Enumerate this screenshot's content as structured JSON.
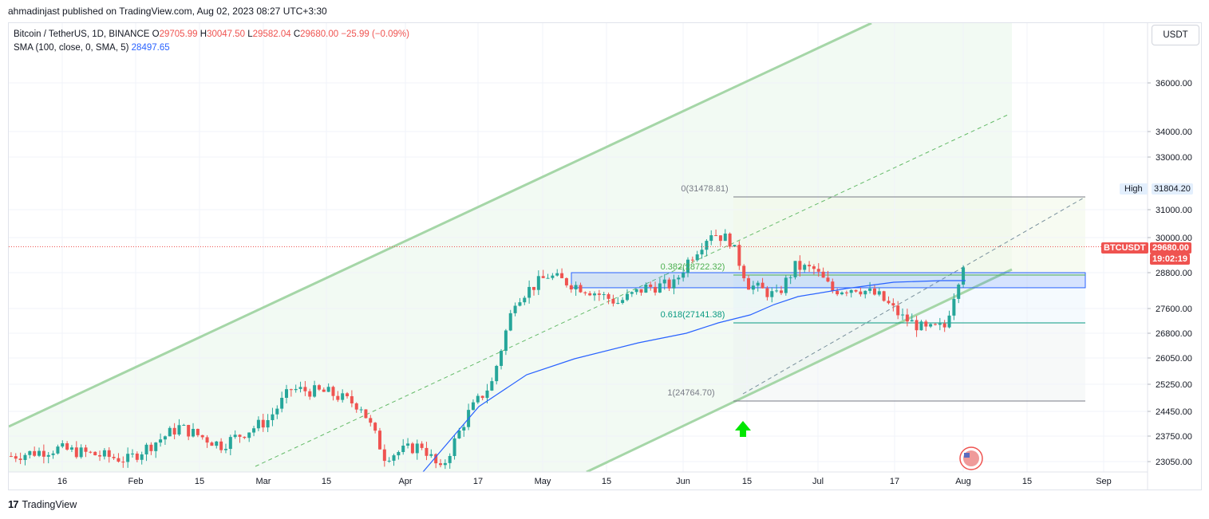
{
  "header": {
    "published": "ahmadinjast published on TradingView.com, Aug 02, 2023 08:27 UTC+3:30"
  },
  "legend": {
    "symbol": "Bitcoin / TetherUS, 1D, BINANCE",
    "open_label": "O",
    "open": "29705.99",
    "high_label": "H",
    "high": "30047.50",
    "low_label": "L",
    "low": "29582.04",
    "close_label": "C",
    "close": "29680.00",
    "change": "−25.99 (−0.09%)",
    "sma_label": "SMA (100, close, 0, SMA, 5)",
    "sma_value": "28497.65"
  },
  "currency": "USDT",
  "footer": {
    "logo": "17",
    "brand": "TradingView"
  },
  "price_tags": {
    "high_label": "High",
    "high_value": "31804.20",
    "symbol_tag": "BTCUSDT",
    "last_price": "29680.00",
    "countdown": "19:02:19"
  },
  "fib_labels": {
    "level_0": "0(31478.81)",
    "level_382": "0.382(28722.32)",
    "level_618": "0.618(27141.38)",
    "level_1": "1(24764.70)"
  },
  "colors": {
    "up": "#26a69a",
    "down": "#ef5350",
    "sma": "#2962ff",
    "channel": "#a5d6a7",
    "zone": "#2962ff",
    "arrow": "#00e600"
  },
  "chart_data": {
    "type": "candlestick",
    "symbol": "BTCUSDT",
    "timeframe": "1D",
    "y_axis": {
      "scale": "log",
      "ticks": [
        36000,
        34000,
        33000,
        31000,
        30000,
        28800,
        27600,
        26800,
        26050,
        25250,
        24450,
        23750,
        23050
      ],
      "tick_labels": [
        "36000.00",
        "34000.00",
        "33000.00",
        "31000.00",
        "30000.00",
        "28800.00",
        "27600.00",
        "26800.00",
        "26050.00",
        "25250.00",
        "24450.00",
        "23750.00",
        "23050.00"
      ]
    },
    "x_axis": {
      "tick_labels": [
        "16",
        "Feb",
        "15",
        "Mar",
        "15",
        "Apr",
        "17",
        "May",
        "15",
        "Jun",
        "15",
        "Jul",
        "17",
        "Aug",
        "15",
        "Sep"
      ]
    },
    "last_price": 29680.0,
    "high_marker": 31804.2,
    "sma": {
      "name": "SMA (100, close, 0, SMA, 5)",
      "last": 28497.65
    },
    "fibonacci": [
      {
        "level": 0,
        "price": 31478.81
      },
      {
        "level": 0.382,
        "price": 28722.32
      },
      {
        "level": 0.618,
        "price": 27141.38
      },
      {
        "level": 1,
        "price": 24764.7
      }
    ],
    "support_zone": {
      "from": 28450,
      "to": 28800
    }
  }
}
